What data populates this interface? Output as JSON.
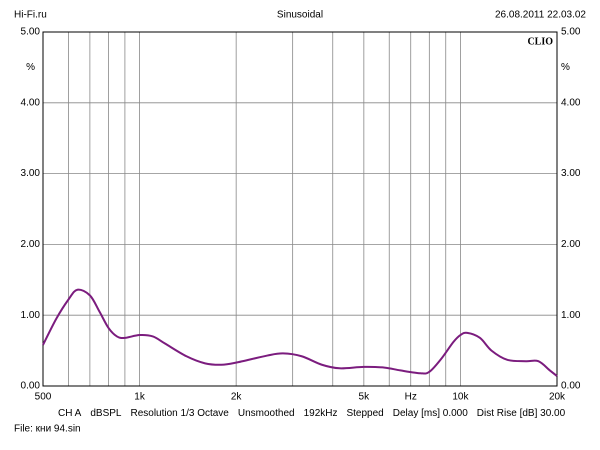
{
  "header": {
    "left": "Hi-Fi.ru",
    "center": "Sinusoidal",
    "right": "26.08.2011 22.03.02"
  },
  "chart_data": {
    "type": "line",
    "log_x": true,
    "grid": true,
    "brand": "CLIO",
    "y_unit": "%",
    "y_unit_at": 4.5,
    "xlim": [
      500,
      20000
    ],
    "xticks": [
      500,
      {
        "value": 1000,
        "label": "1k"
      },
      {
        "value": 2000,
        "label": "2k"
      },
      {
        "value": 5000,
        "label": "5k"
      },
      {
        "value": 7000,
        "label": "Hz"
      },
      {
        "value": 10000,
        "label": "10k"
      },
      {
        "value": 20000,
        "label": "20k"
      }
    ],
    "xminor": [
      600,
      700,
      800,
      900,
      3000,
      4000,
      6000,
      8000,
      9000
    ],
    "ylim": [
      0,
      5
    ],
    "yticks": [
      {
        "value": 0,
        "label": "0.00"
      },
      {
        "value": 1,
        "label": "1.00"
      },
      {
        "value": 2,
        "label": "2.00"
      },
      {
        "value": 3,
        "label": "3.00"
      },
      {
        "value": 4,
        "label": "4.00"
      },
      {
        "value": 5,
        "label": "5.00"
      }
    ],
    "series": [
      {
        "name": "CH A",
        "color": "#7b1c7e",
        "x": [
          500,
          550,
          600,
          640,
          700,
          750,
          800,
          850,
          900,
          1000,
          1100,
          1200,
          1400,
          1600,
          1800,
          2000,
          2500,
          2800,
          3200,
          3700,
          4200,
          5000,
          5800,
          6500,
          7500,
          8000,
          8700,
          9500,
          10000,
          10500,
          11500,
          12500,
          14000,
          16000,
          17500,
          19000,
          20000
        ],
        "values": [
          0.58,
          0.95,
          1.22,
          1.36,
          1.28,
          1.05,
          0.82,
          0.7,
          0.68,
          0.72,
          0.7,
          0.6,
          0.42,
          0.32,
          0.3,
          0.33,
          0.43,
          0.46,
          0.42,
          0.3,
          0.25,
          0.27,
          0.26,
          0.22,
          0.18,
          0.2,
          0.38,
          0.62,
          0.72,
          0.75,
          0.68,
          0.5,
          0.37,
          0.35,
          0.35,
          0.22,
          0.14
        ]
      }
    ]
  },
  "footer": {
    "items": [
      "CH A",
      "dBSPL",
      "Resolution 1/3 Octave",
      "Unsmoothed",
      "192kHz",
      "Stepped",
      "Delay [ms] 0.000",
      "Dist Rise [dB] 30.00"
    ],
    "file": "File: кни 94.sin"
  }
}
